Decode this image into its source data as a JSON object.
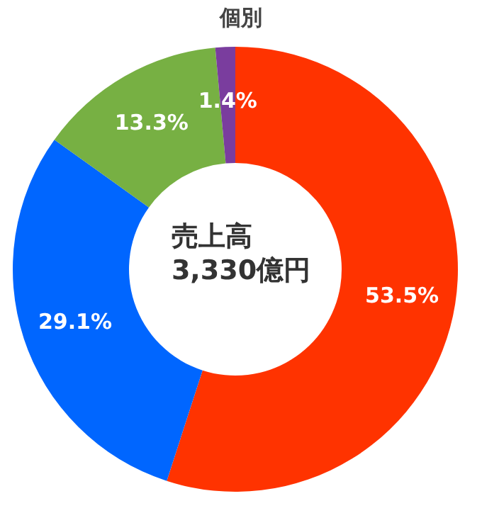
{
  "chart_data": {
    "type": "donut",
    "title": "個別",
    "annotations": [
      "売上高\n3,330億円"
    ],
    "categories": [
      null,
      null,
      null,
      null
    ],
    "values": [
      53.5,
      29.1,
      13.3,
      1.4
    ],
    "colors": [
      "#ff3300",
      "#0066ff",
      "#77b043",
      "#7a3d9e"
    ],
    "value_labels": [
      "53.5%",
      "29.1%",
      "13.3%",
      "1.4%"
    ]
  }
}
